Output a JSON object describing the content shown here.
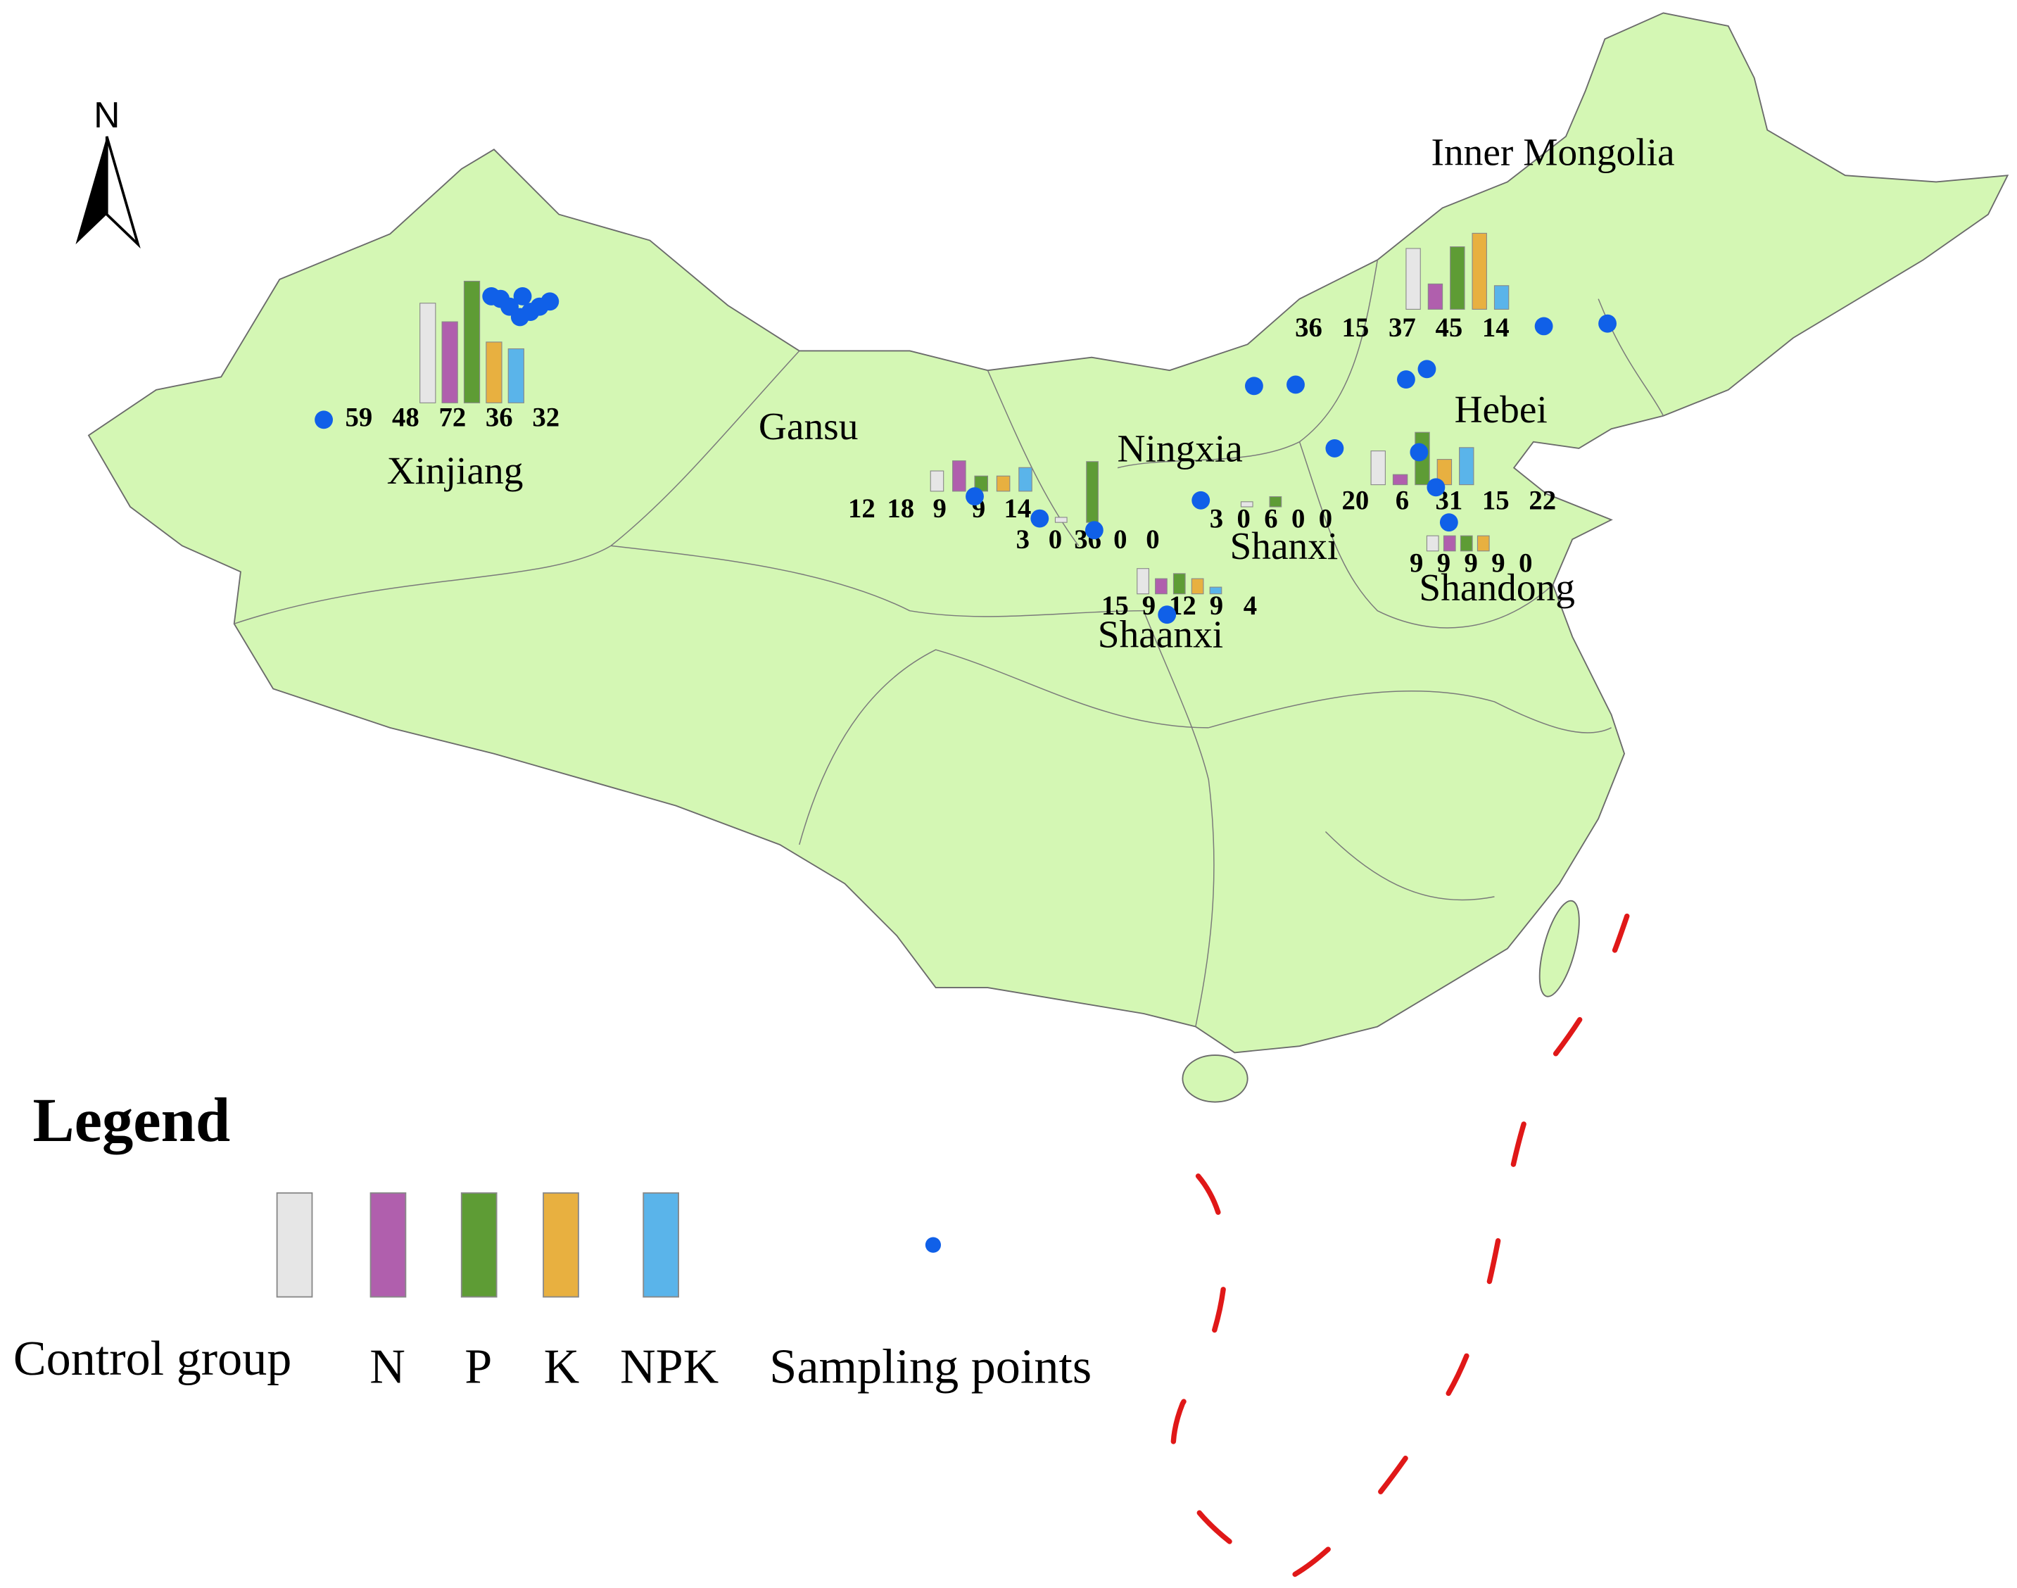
{
  "north_label": "N",
  "legend": {
    "title": "Legend",
    "groups": [
      "Control group",
      "N",
      "P",
      "K",
      "NPK"
    ],
    "colors": [
      "#e6e6e6",
      "#b05fad",
      "#5e9c35",
      "#e8b040",
      "#5ab4ea"
    ],
    "sampling_label": "Sampling points",
    "sampling_color": "#1060e8"
  },
  "regions": [
    {
      "name": "Xinjiang",
      "values": [
        59,
        48,
        72,
        36,
        32
      ]
    },
    {
      "name": "Inner Mongolia",
      "values": [
        36,
        15,
        37,
        45,
        14
      ]
    },
    {
      "name": "Gansu",
      "values": [
        12,
        18,
        9,
        9,
        14
      ]
    },
    {
      "name": "Ningxia",
      "values": [
        3,
        0,
        36,
        0,
        0
      ]
    },
    {
      "name": "Shanxi",
      "values": [
        3,
        0,
        6,
        0,
        0
      ]
    },
    {
      "name": "Hebei",
      "values": [
        20,
        6,
        31,
        15,
        22
      ]
    },
    {
      "name": "Shandong",
      "values": [
        9,
        9,
        9,
        9,
        0
      ]
    },
    {
      "name": "Shaanxi",
      "values": [
        15,
        9,
        12,
        9,
        4
      ]
    }
  ]
}
